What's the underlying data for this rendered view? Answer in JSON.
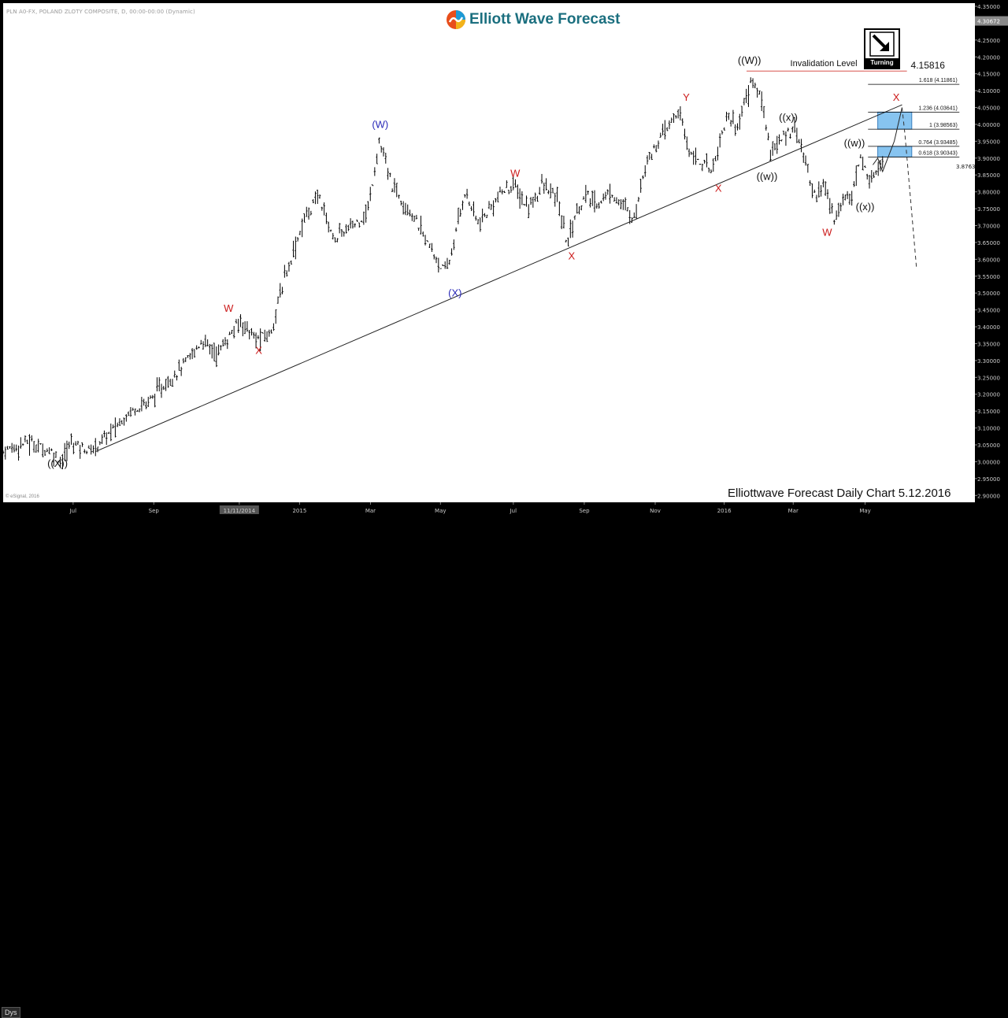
{
  "header": {
    "symbol": "PLN A0-FX, POLAND ZLOTY COMPOSITE, D, 00:00-00:00 (Dynamic)",
    "brand": "Elliott Wave Forecast",
    "brand_color": "#1b6f7f",
    "badge_label": "Turning",
    "badge_icon": "arrow-down-right-icon"
  },
  "footer": {
    "caption": "Elliottwave Forecast Daily Chart 5.12.2016",
    "copyright": "© eSignal, 2016",
    "period": "Dys"
  },
  "chart_data": {
    "type": "ohlc",
    "symbol": "PLN A0-FX",
    "ylim": [
      2.875,
      4.35
    ],
    "y_ticks": [
      4.35,
      4.3,
      4.25,
      4.2,
      4.15,
      4.1,
      4.05,
      4.0,
      3.95,
      3.9,
      3.85,
      3.8,
      3.75,
      3.7,
      3.65,
      3.6,
      3.55,
      3.5,
      3.45,
      3.4,
      3.35,
      3.3,
      3.25,
      3.2,
      3.15,
      3.1,
      3.05,
      3.0,
      2.95,
      2.9
    ],
    "y_tick_labels": [
      "4.35000",
      "4.30000",
      "4.25000",
      "4.20000",
      "4.15000",
      "4.10000",
      "4.05000",
      "4.00000",
      "3.95000",
      "3.90000",
      "3.85000",
      "3.80000",
      "3.75000",
      "3.70000",
      "3.65000",
      "3.60000",
      "3.55000",
      "3.50000",
      "3.45000",
      "3.40000",
      "3.35000",
      "3.30000",
      "3.25000",
      "3.20000",
      "3.15000",
      "3.10000",
      "3.05000",
      "3.00000",
      "2.95000",
      "2.90000"
    ],
    "last_price": "4.30672",
    "current_price": "3.87630",
    "x_ticks": [
      {
        "label": "Jul",
        "i": 0.072
      },
      {
        "label": "Sep",
        "i": 0.155
      },
      {
        "label": "11/11/2014",
        "i": 0.243
      },
      {
        "label": "2015",
        "i": 0.305
      },
      {
        "label": "Mar",
        "i": 0.378
      },
      {
        "label": "May",
        "i": 0.45
      },
      {
        "label": "Jul",
        "i": 0.525
      },
      {
        "label": "Sep",
        "i": 0.598
      },
      {
        "label": "Nov",
        "i": 0.671
      },
      {
        "label": "2016",
        "i": 0.742
      },
      {
        "label": "Mar",
        "i": 0.813
      },
      {
        "label": "May",
        "i": 0.887
      }
    ],
    "price_path": [
      [
        0.0,
        3.03
      ],
      [
        0.025,
        3.06
      ],
      [
        0.05,
        3.03
      ],
      [
        0.06,
        3.0
      ],
      [
        0.07,
        3.06
      ],
      [
        0.09,
        3.03
      ],
      [
        0.1,
        3.06
      ],
      [
        0.115,
        3.1
      ],
      [
        0.13,
        3.15
      ],
      [
        0.15,
        3.18
      ],
      [
        0.17,
        3.24
      ],
      [
        0.19,
        3.3
      ],
      [
        0.205,
        3.36
      ],
      [
        0.22,
        3.32
      ],
      [
        0.235,
        3.38
      ],
      [
        0.245,
        3.42
      ],
      [
        0.26,
        3.36
      ],
      [
        0.275,
        3.38
      ],
      [
        0.29,
        3.55
      ],
      [
        0.31,
        3.72
      ],
      [
        0.325,
        3.79
      ],
      [
        0.34,
        3.66
      ],
      [
        0.36,
        3.7
      ],
      [
        0.375,
        3.74
      ],
      [
        0.387,
        3.95
      ],
      [
        0.4,
        3.82
      ],
      [
        0.42,
        3.74
      ],
      [
        0.44,
        3.63
      ],
      [
        0.455,
        3.56
      ],
      [
        0.46,
        3.6
      ],
      [
        0.475,
        3.8
      ],
      [
        0.49,
        3.7
      ],
      [
        0.51,
        3.79
      ],
      [
        0.525,
        3.82
      ],
      [
        0.54,
        3.75
      ],
      [
        0.555,
        3.82
      ],
      [
        0.57,
        3.78
      ],
      [
        0.58,
        3.65
      ],
      [
        0.59,
        3.74
      ],
      [
        0.6,
        3.79
      ],
      [
        0.61,
        3.76
      ],
      [
        0.625,
        3.8
      ],
      [
        0.64,
        3.75
      ],
      [
        0.65,
        3.72
      ],
      [
        0.66,
        3.88
      ],
      [
        0.675,
        3.95
      ],
      [
        0.695,
        4.04
      ],
      [
        0.705,
        3.93
      ],
      [
        0.72,
        3.88
      ],
      [
        0.73,
        3.87
      ],
      [
        0.745,
        4.03
      ],
      [
        0.755,
        3.99
      ],
      [
        0.77,
        4.13
      ],
      [
        0.78,
        4.08
      ],
      [
        0.79,
        3.92
      ],
      [
        0.8,
        3.95
      ],
      [
        0.815,
        4.0
      ],
      [
        0.825,
        3.89
      ],
      [
        0.835,
        3.79
      ],
      [
        0.845,
        3.82
      ],
      [
        0.855,
        3.72
      ],
      [
        0.865,
        3.78
      ],
      [
        0.875,
        3.81
      ],
      [
        0.882,
        3.9
      ],
      [
        0.888,
        3.86
      ],
      [
        0.893,
        3.83
      ],
      [
        0.9,
        3.88
      ],
      [
        0.905,
        3.89
      ]
    ],
    "trendline": {
      "from": [
        0.095,
        3.03
      ],
      "to": [
        0.925,
        4.058
      ]
    },
    "invalidation_level": {
      "label": "Invalidation Level",
      "value": 4.15816,
      "value_label": "4.15816"
    },
    "fib_levels": [
      {
        "label": "1.618 (4.11861)",
        "value": 4.11861
      },
      {
        "label": "1.236 (4.03641)",
        "value": 4.03641
      },
      {
        "label": "1 (3.98563)",
        "value": 3.98563
      },
      {
        "label": "0.764 (3.93485)",
        "value": 3.93485
      },
      {
        "label": "0.618 (3.90343)",
        "value": 3.90343
      }
    ],
    "target_zones": [
      {
        "from": 3.98563,
        "to": 4.03641,
        "color": "#87c4f0"
      },
      {
        "from": 3.90343,
        "to": 3.93485,
        "color": "#87c4f0"
      }
    ],
    "projection": [
      [
        0.895,
        3.88
      ],
      [
        0.9,
        3.9
      ],
      [
        0.905,
        3.86
      ],
      [
        0.917,
        3.95
      ],
      [
        0.925,
        4.05
      ],
      [
        0.928,
        3.97
      ],
      [
        0.94,
        3.57
      ]
    ],
    "wave_labels": [
      {
        "text": "((X))",
        "i": 0.056,
        "y": 2.985,
        "color": "#111111"
      },
      {
        "text": "W",
        "i": 0.232,
        "y": 3.445,
        "color": "#cc1b1b"
      },
      {
        "text": "X",
        "i": 0.263,
        "y": 3.32,
        "color": "#cc1b1b"
      },
      {
        "text": "(W)",
        "i": 0.388,
        "y": 3.99,
        "color": "#2b2bb8"
      },
      {
        "text": "(X)",
        "i": 0.465,
        "y": 3.49,
        "color": "#2b2bb8"
      },
      {
        "text": "W",
        "i": 0.527,
        "y": 3.845,
        "color": "#cc1b1b"
      },
      {
        "text": "X",
        "i": 0.585,
        "y": 3.6,
        "color": "#cc1b1b"
      },
      {
        "text": "Y",
        "i": 0.703,
        "y": 4.07,
        "color": "#cc1b1b"
      },
      {
        "text": "X",
        "i": 0.736,
        "y": 3.8,
        "color": "#cc1b1b"
      },
      {
        "text": "((W))",
        "i": 0.768,
        "y": 4.18,
        "color": "#111111"
      },
      {
        "text": "((x))",
        "i": 0.808,
        "y": 4.01,
        "color": "#111111"
      },
      {
        "text": "((w))",
        "i": 0.786,
        "y": 3.835,
        "color": "#111111"
      },
      {
        "text": "W",
        "i": 0.848,
        "y": 3.67,
        "color": "#cc1b1b"
      },
      {
        "text": "((w))",
        "i": 0.876,
        "y": 3.935,
        "color": "#111111"
      },
      {
        "text": "((x))",
        "i": 0.887,
        "y": 3.745,
        "color": "#111111"
      },
      {
        "text": "X",
        "i": 0.919,
        "y": 4.07,
        "color": "#cc1b1b"
      }
    ]
  }
}
